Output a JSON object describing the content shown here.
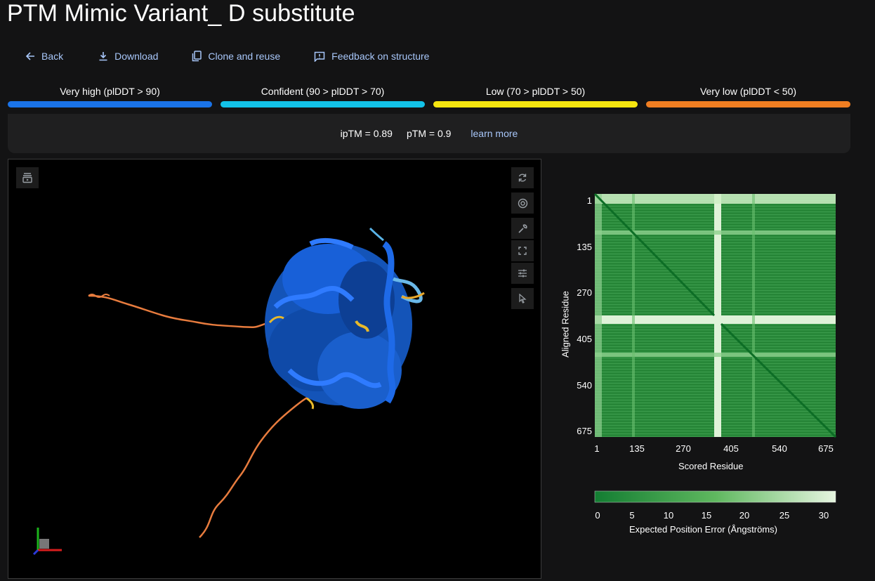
{
  "page": {
    "title": "PTM Mimic Variant_ D substitute"
  },
  "toolbar": {
    "back": "Back",
    "download": "Download",
    "clone": "Clone and reuse",
    "feedback": "Feedback on structure"
  },
  "legend": [
    {
      "label": "Very high (plDDT > 90)",
      "color": "#1a73e8"
    },
    {
      "label": "Confident (90 > plDDT > 70)",
      "color": "#13c2e8"
    },
    {
      "label": "Low (70 > plDDT > 50)",
      "color": "#f5e50f"
    },
    {
      "label": "Very low (plDDT < 50)",
      "color": "#f07e22"
    }
  ],
  "metrics": {
    "iptm": "ipTM = 0.89",
    "ptm": "pTM = 0.9",
    "learn_more": "learn more"
  },
  "viewer": {
    "icons": [
      "playlist-icon",
      "rotate-icon",
      "camera-icon",
      "wrench-icon",
      "fullscreen-icon",
      "settings-sliders-icon",
      "pointer-icon"
    ]
  },
  "pae": {
    "y_label": "Aligned Residue",
    "x_label": "Scored Residue",
    "y_ticks": [
      "1",
      "135",
      "270",
      "405",
      "540",
      "675"
    ],
    "x_ticks": [
      "1",
      "135",
      "270",
      "405",
      "540",
      "675"
    ],
    "colorbar_ticks": [
      "0",
      "5",
      "10",
      "15",
      "20",
      "25",
      "30"
    ],
    "colorbar_label": "Expected Position Error (Ångströms)",
    "colors": {
      "low": "#137d32",
      "high": "#e6f5e0"
    }
  }
}
